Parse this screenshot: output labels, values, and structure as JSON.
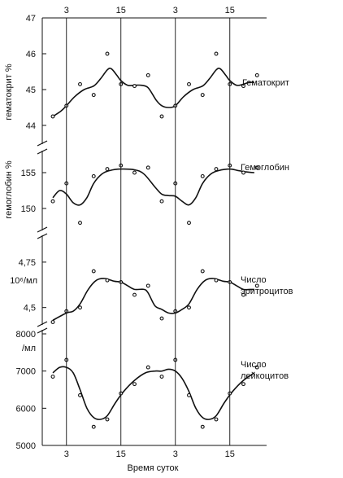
{
  "chart_data": [
    {
      "type": "line",
      "ylabel": "гематокрит %",
      "ylim": [
        44,
        47
      ],
      "yticks": [
        44,
        45,
        46,
        47
      ],
      "series_label": "Гематокрит",
      "points": [
        [
          0,
          44.25
        ],
        [
          1,
          44.55
        ],
        [
          2,
          45.15
        ],
        [
          3,
          44.85
        ],
        [
          4,
          46.0
        ],
        [
          5,
          45.15
        ],
        [
          6,
          45.1
        ],
        [
          7,
          45.4
        ],
        [
          8,
          44.25
        ],
        [
          9,
          44.55
        ],
        [
          10,
          45.15
        ],
        [
          11,
          44.85
        ],
        [
          12,
          46.0
        ],
        [
          13,
          45.15
        ],
        [
          14,
          45.1
        ],
        [
          15,
          45.4
        ]
      ],
      "curve": [
        [
          0,
          44.25
        ],
        [
          0.6,
          44.4
        ],
        [
          1,
          44.55
        ],
        [
          1.6,
          44.8
        ],
        [
          2.3,
          45.0
        ],
        [
          3,
          45.1
        ],
        [
          3.5,
          45.3
        ],
        [
          4,
          45.55
        ],
        [
          4.3,
          45.58
        ],
        [
          4.7,
          45.4
        ],
        [
          5,
          45.25
        ],
        [
          5.5,
          45.12
        ],
        [
          6,
          45.12
        ],
        [
          6.5,
          45.12
        ],
        [
          7,
          45.05
        ],
        [
          7.6,
          44.7
        ],
        [
          8,
          44.55
        ],
        [
          8.5,
          44.5
        ],
        [
          9,
          44.55
        ],
        [
          9.6,
          44.8
        ],
        [
          10.3,
          45.0
        ],
        [
          11,
          45.1
        ],
        [
          11.5,
          45.3
        ],
        [
          12,
          45.55
        ],
        [
          12.3,
          45.58
        ],
        [
          12.7,
          45.4
        ],
        [
          13,
          45.25
        ],
        [
          13.5,
          45.12
        ],
        [
          14,
          45.15
        ],
        [
          14.4,
          45.2
        ],
        [
          14.8,
          45.2
        ]
      ]
    },
    {
      "type": "line",
      "ylabel": "гемоглобин %",
      "ylim": [
        147.5,
        157.5
      ],
      "yticks": [
        150,
        155
      ],
      "series_label": "Гемоглобин",
      "points": [
        [
          0,
          151.0
        ],
        [
          1,
          153.5
        ],
        [
          2,
          148.0
        ],
        [
          3,
          154.5
        ],
        [
          4,
          155.5
        ],
        [
          5,
          156.0
        ],
        [
          6,
          155.0
        ],
        [
          7,
          155.7
        ],
        [
          8,
          151.0
        ],
        [
          9,
          153.5
        ],
        [
          10,
          148.0
        ],
        [
          11,
          154.5
        ],
        [
          12,
          155.5
        ],
        [
          13,
          156.0
        ],
        [
          14,
          155.0
        ],
        [
          15,
          155.7
        ]
      ],
      "curve": [
        [
          0,
          151.5
        ],
        [
          0.5,
          152.5
        ],
        [
          1,
          152.0
        ],
        [
          1.5,
          150.8
        ],
        [
          2,
          150.5
        ],
        [
          2.5,
          151.5
        ],
        [
          3,
          153.5
        ],
        [
          3.6,
          154.8
        ],
        [
          4.2,
          155.3
        ],
        [
          5,
          155.5
        ],
        [
          6,
          155.4
        ],
        [
          6.7,
          154.8
        ],
        [
          7.5,
          153.0
        ],
        [
          8,
          152.0
        ],
        [
          8.5,
          151.8
        ],
        [
          9,
          151.7
        ],
        [
          9.5,
          151.0
        ],
        [
          10,
          150.5
        ],
        [
          10.5,
          151.5
        ],
        [
          11,
          153.5
        ],
        [
          11.6,
          154.8
        ],
        [
          12.2,
          155.3
        ],
        [
          13,
          155.5
        ],
        [
          13.6,
          155.3
        ],
        [
          14.2,
          155.1
        ],
        [
          14.8,
          155.0
        ]
      ]
    },
    {
      "type": "line",
      "ylabel": "10⁶/мл",
      "ylim": [
        4.4,
        4.875
      ],
      "yticks": [
        4.5,
        4.75
      ],
      "ytick_labels": [
        "4,5",
        "4,75"
      ],
      "series_label_lines": [
        "Число",
        "эритроцитов"
      ],
      "points": [
        [
          0,
          4.42
        ],
        [
          1,
          4.48
        ],
        [
          2,
          4.5
        ],
        [
          3,
          4.7
        ],
        [
          4,
          4.65
        ],
        [
          5,
          4.64
        ],
        [
          6,
          4.57
        ],
        [
          7,
          4.62
        ],
        [
          8,
          4.44
        ],
        [
          9,
          4.48
        ],
        [
          10,
          4.5
        ],
        [
          11,
          4.7
        ],
        [
          12,
          4.65
        ],
        [
          13,
          4.64
        ],
        [
          14,
          4.57
        ],
        [
          15,
          4.62
        ]
      ],
      "curve": [
        [
          0,
          4.43
        ],
        [
          1,
          4.47
        ],
        [
          1.5,
          4.48
        ],
        [
          2,
          4.52
        ],
        [
          2.6,
          4.6
        ],
        [
          3.2,
          4.65
        ],
        [
          3.8,
          4.66
        ],
        [
          4.5,
          4.645
        ],
        [
          5,
          4.64
        ],
        [
          5.5,
          4.62
        ],
        [
          6,
          4.6
        ],
        [
          6.7,
          4.6
        ],
        [
          7,
          4.58
        ],
        [
          7.5,
          4.51
        ],
        [
          8,
          4.49
        ],
        [
          8.5,
          4.47
        ],
        [
          9,
          4.47
        ],
        [
          9.5,
          4.49
        ],
        [
          10,
          4.52
        ],
        [
          10.6,
          4.6
        ],
        [
          11.2,
          4.65
        ],
        [
          11.8,
          4.66
        ],
        [
          12.5,
          4.645
        ],
        [
          13,
          4.64
        ],
        [
          13.5,
          4.62
        ],
        [
          14,
          4.6
        ],
        [
          14.5,
          4.6
        ],
        [
          14.8,
          4.6
        ]
      ]
    },
    {
      "type": "line",
      "ylabel": "/мл",
      "ylim": [
        5000,
        8000
      ],
      "yticks": [
        5000,
        6000,
        7000,
        8000
      ],
      "series_label_lines": [
        "Число",
        "лейкоцитов"
      ],
      "points": [
        [
          0,
          6850
        ],
        [
          1,
          7300
        ],
        [
          2,
          6350
        ],
        [
          3,
          5500
        ],
        [
          4,
          5700
        ],
        [
          5,
          6400
        ],
        [
          6,
          6650
        ],
        [
          7,
          7100
        ],
        [
          8,
          6850
        ],
        [
          9,
          7300
        ],
        [
          10,
          6350
        ],
        [
          11,
          5500
        ],
        [
          12,
          5700
        ],
        [
          13,
          6400
        ],
        [
          14,
          6650
        ],
        [
          15,
          7100
        ]
      ],
      "curve": [
        [
          0,
          6950
        ],
        [
          0.5,
          7100
        ],
        [
          1,
          7100
        ],
        [
          1.5,
          6950
        ],
        [
          2,
          6500
        ],
        [
          2.5,
          6000
        ],
        [
          3,
          5750
        ],
        [
          3.5,
          5700
        ],
        [
          4,
          5800
        ],
        [
          4.6,
          6150
        ],
        [
          5.2,
          6450
        ],
        [
          6,
          6750
        ],
        [
          6.8,
          6950
        ],
        [
          7.5,
          7000
        ],
        [
          8,
          7000
        ],
        [
          8.5,
          7050
        ],
        [
          9,
          7000
        ],
        [
          9.5,
          6800
        ],
        [
          10,
          6450
        ],
        [
          10.5,
          6000
        ],
        [
          11,
          5750
        ],
        [
          11.5,
          5700
        ],
        [
          12,
          5800
        ],
        [
          12.6,
          6150
        ],
        [
          13.2,
          6450
        ],
        [
          14,
          6750
        ],
        [
          14.8,
          6950
        ]
      ]
    }
  ],
  "x_axis": {
    "xlabel": "Время суток",
    "tick_labels": [
      "3",
      "15",
      "3",
      "15"
    ],
    "tick_positions": [
      1,
      5,
      9,
      13
    ]
  }
}
